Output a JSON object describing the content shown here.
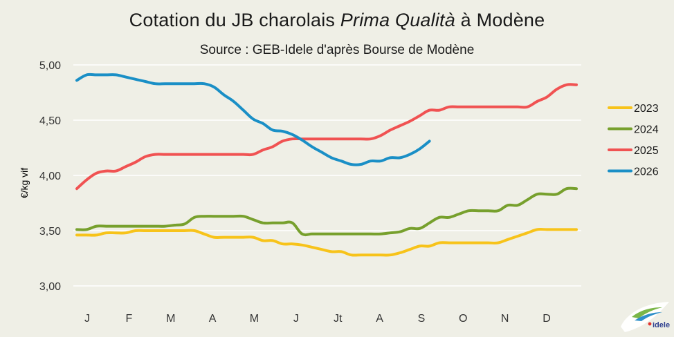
{
  "title_parts": [
    "Cotation du JB charolais ",
    "Prima Qualità",
    " à Modène"
  ],
  "subtitle": "Source : GEB-Idele d'après Bourse de Modène",
  "logo_text": "idele",
  "chart_data": {
    "type": "line",
    "title": "Cotation du JB charolais Prima Qualità à Modène",
    "subtitle": "Source : GEB-Idele d'après Bourse de Modène",
    "ylabel": "€/kg vif",
    "xlabel": "",
    "ylim": [
      3.0,
      5.0
    ],
    "yticks": [
      "3,00",
      "3,50",
      "4,00",
      "4,50",
      "5,00"
    ],
    "ytick_values": [
      3.0,
      3.5,
      4.0,
      4.5,
      5.0
    ],
    "categories": [
      "J",
      "F",
      "M",
      "A",
      "M",
      "J",
      "Jt",
      "A",
      "S",
      "O",
      "N",
      "D"
    ],
    "x_unit": "week",
    "x_range": [
      1,
      52
    ],
    "grid": true,
    "legend_position": "right",
    "series": [
      {
        "name": "2023",
        "color": "#f7c31a",
        "x": [
          1,
          2,
          3,
          4,
          5,
          6,
          7,
          8,
          9,
          10,
          11,
          12,
          13,
          14,
          15,
          16,
          17,
          18,
          19,
          20,
          21,
          22,
          23,
          24,
          25,
          26,
          27,
          28,
          29,
          30,
          31,
          32,
          33,
          34,
          35,
          36,
          37,
          38,
          39,
          40,
          41,
          42,
          43,
          44,
          45,
          46,
          47,
          48,
          49,
          50,
          51,
          52
        ],
        "values": [
          3.46,
          3.46,
          3.46,
          3.48,
          3.48,
          3.48,
          3.5,
          3.5,
          3.5,
          3.5,
          3.5,
          3.5,
          3.5,
          3.47,
          3.44,
          3.44,
          3.44,
          3.44,
          3.44,
          3.41,
          3.41,
          3.38,
          3.38,
          3.37,
          3.35,
          3.33,
          3.31,
          3.31,
          3.28,
          3.28,
          3.28,
          3.28,
          3.28,
          3.3,
          3.33,
          3.36,
          3.36,
          3.39,
          3.39,
          3.39,
          3.39,
          3.39,
          3.39,
          3.39,
          3.42,
          3.45,
          3.48,
          3.51,
          3.51,
          3.51,
          3.51,
          3.51
        ]
      },
      {
        "name": "2024",
        "color": "#77a02d",
        "x": [
          1,
          2,
          3,
          4,
          5,
          6,
          7,
          8,
          9,
          10,
          11,
          12,
          13,
          14,
          15,
          16,
          17,
          18,
          19,
          20,
          21,
          22,
          23,
          24,
          25,
          26,
          27,
          28,
          29,
          30,
          31,
          32,
          33,
          34,
          35,
          36,
          37,
          38,
          39,
          40,
          41,
          42,
          43,
          44,
          45,
          46,
          47,
          48,
          49,
          50,
          51,
          52
        ],
        "values": [
          3.51,
          3.51,
          3.54,
          3.54,
          3.54,
          3.54,
          3.54,
          3.54,
          3.54,
          3.54,
          3.55,
          3.56,
          3.62,
          3.63,
          3.63,
          3.63,
          3.63,
          3.63,
          3.6,
          3.57,
          3.57,
          3.57,
          3.57,
          3.47,
          3.47,
          3.47,
          3.47,
          3.47,
          3.47,
          3.47,
          3.47,
          3.47,
          3.48,
          3.49,
          3.52,
          3.52,
          3.57,
          3.62,
          3.62,
          3.65,
          3.68,
          3.68,
          3.68,
          3.68,
          3.73,
          3.73,
          3.78,
          3.83,
          3.83,
          3.83,
          3.88,
          3.88
        ]
      },
      {
        "name": "2025",
        "color": "#f05252",
        "x": [
          1,
          2,
          3,
          4,
          5,
          6,
          7,
          8,
          9,
          10,
          11,
          12,
          13,
          14,
          15,
          16,
          17,
          18,
          19,
          20,
          21,
          22,
          23,
          24,
          25,
          26,
          27,
          28,
          29,
          30,
          31,
          32,
          33,
          34,
          35,
          36,
          37,
          38,
          39,
          40,
          41,
          42,
          43,
          44,
          45,
          46,
          47,
          48,
          49,
          50,
          51,
          52
        ],
        "values": [
          3.88,
          3.96,
          4.02,
          4.04,
          4.04,
          4.08,
          4.12,
          4.17,
          4.19,
          4.19,
          4.19,
          4.19,
          4.19,
          4.19,
          4.19,
          4.19,
          4.19,
          4.19,
          4.19,
          4.23,
          4.26,
          4.31,
          4.33,
          4.33,
          4.33,
          4.33,
          4.33,
          4.33,
          4.33,
          4.33,
          4.33,
          4.36,
          4.41,
          4.45,
          4.49,
          4.54,
          4.59,
          4.59,
          4.62,
          4.62,
          4.62,
          4.62,
          4.62,
          4.62,
          4.62,
          4.62,
          4.62,
          4.67,
          4.71,
          4.78,
          4.82,
          4.82
        ]
      },
      {
        "name": "2026",
        "color": "#1a8fc6",
        "x": [
          1,
          2,
          3,
          4,
          5,
          6,
          7,
          8,
          9,
          10,
          11,
          12,
          13,
          14,
          15,
          16,
          17,
          18,
          19,
          20,
          21,
          22,
          23,
          24,
          25,
          26,
          27,
          28,
          29,
          30,
          31,
          32,
          33,
          34,
          35,
          36,
          37
        ],
        "values": [
          4.86,
          4.91,
          4.91,
          4.91,
          4.91,
          4.89,
          4.87,
          4.85,
          4.83,
          4.83,
          4.83,
          4.83,
          4.83,
          4.83,
          4.8,
          4.73,
          4.67,
          4.59,
          4.51,
          4.47,
          4.41,
          4.4,
          4.37,
          4.32,
          4.26,
          4.21,
          4.16,
          4.13,
          4.1,
          4.1,
          4.13,
          4.13,
          4.16,
          4.16,
          4.19,
          4.24,
          4.31
        ]
      }
    ]
  }
}
